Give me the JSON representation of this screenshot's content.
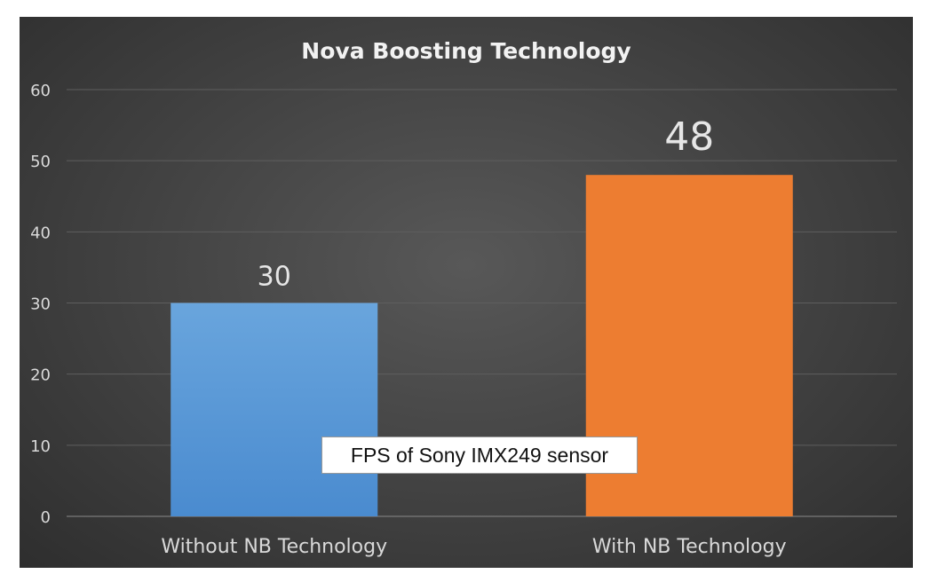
{
  "chart_data": {
    "type": "bar",
    "title": "Nova Boosting Technology",
    "categories": [
      "Without NB Technology",
      "With NB Technology"
    ],
    "values": [
      30,
      48
    ],
    "colors": [
      "#5b9bd5",
      "#ed7d31"
    ],
    "data_labels": [
      "30",
      "48"
    ],
    "xlabel": "",
    "ylabel": "",
    "ylim": [
      0,
      60
    ],
    "yticks": [
      0,
      10,
      20,
      30,
      40,
      50,
      60
    ],
    "grid": true,
    "legend": {
      "entries": [
        "FPS of Sony IMX249 sensor"
      ],
      "placement": "bottom-center"
    }
  }
}
